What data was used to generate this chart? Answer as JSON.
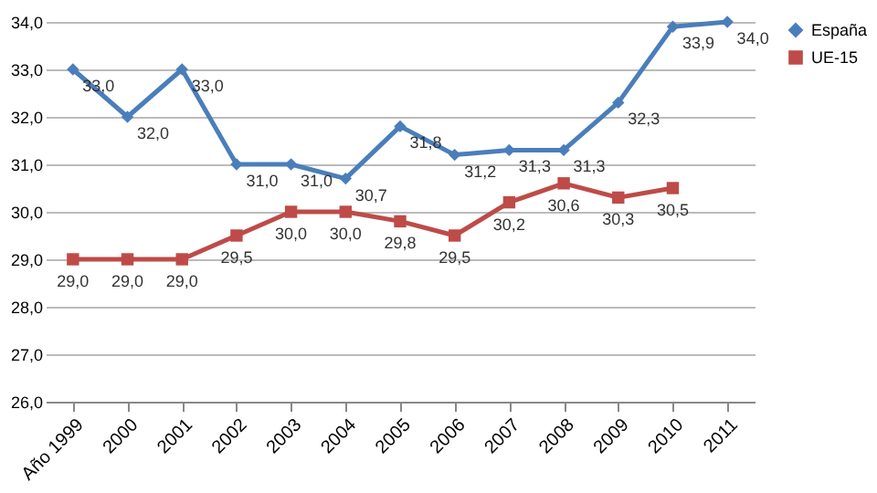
{
  "chart_data": {
    "type": "line",
    "categories": [
      "Año 1999",
      "2000",
      "2001",
      "2002",
      "2003",
      "2004",
      "2005",
      "2006",
      "2007",
      "2008",
      "2009",
      "2010",
      "2011"
    ],
    "series": [
      {
        "name": "España",
        "color": "#4a7ebb",
        "marker": "diamond",
        "values": [
          33.0,
          32.0,
          33.0,
          31.0,
          31.0,
          30.7,
          31.8,
          31.2,
          31.3,
          31.3,
          32.3,
          33.9,
          34.0
        ],
        "value_labels": [
          "33,0",
          "32,0",
          "33,0",
          "31,0",
          "31,0",
          "30,7",
          "31,8",
          "31,2",
          "31,3",
          "31,3",
          "32,3",
          "33,9",
          "34,0"
        ]
      },
      {
        "name": "UE-15",
        "color": "#be4b48",
        "marker": "square",
        "values": [
          29.0,
          29.0,
          29.0,
          29.5,
          30.0,
          30.0,
          29.8,
          29.5,
          30.2,
          30.6,
          30.3,
          30.5,
          null
        ],
        "value_labels": [
          "29,0",
          "29,0",
          "29,0",
          "29,5",
          "30,0",
          "30,0",
          "29,8",
          "29,5",
          "30,2",
          "30,6",
          "30,3",
          "30,5",
          null
        ]
      }
    ],
    "ylim": [
      26.0,
      34.0
    ],
    "yticks": [
      {
        "value": 26,
        "label": "26,0"
      },
      {
        "value": 27,
        "label": "27,0"
      },
      {
        "value": 28,
        "label": "28,0"
      },
      {
        "value": 29,
        "label": "29,0"
      },
      {
        "value": 30,
        "label": "30,0"
      },
      {
        "value": 31,
        "label": "31,0"
      },
      {
        "value": 32,
        "label": "32,0"
      },
      {
        "value": 33,
        "label": "33,0"
      },
      {
        "value": 34,
        "label": "34,0"
      }
    ],
    "grid": "y",
    "legend": "right",
    "line_style": "solid",
    "data_labels": true
  }
}
